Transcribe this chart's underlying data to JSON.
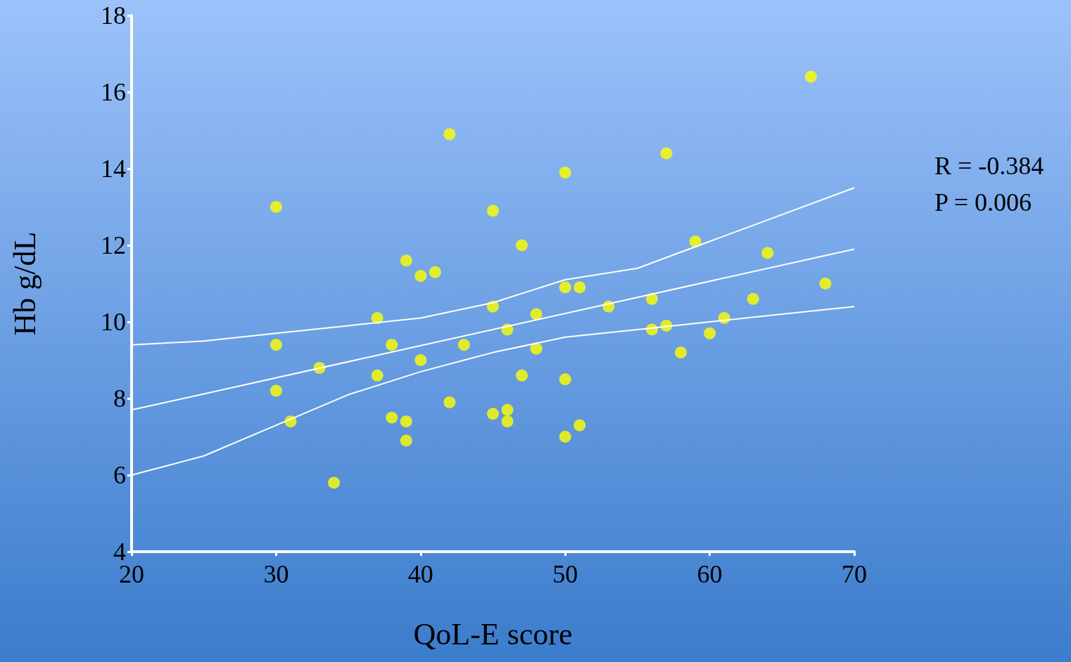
{
  "chart_data": {
    "type": "scatter",
    "xlabel": "QoL-E score",
    "ylabel": "Hb g/dL",
    "xlim": [
      20,
      70
    ],
    "xticks": [
      20,
      30,
      40,
      50,
      60,
      70
    ],
    "ylim": [
      4,
      18
    ],
    "yticks": [
      4,
      6,
      8,
      10,
      12,
      14,
      16,
      18
    ],
    "grid": false,
    "marker": "circle",
    "annotations": [
      "R = -0.384",
      "P = 0.006"
    ],
    "series": [
      {
        "color": "#ffff00",
        "x": [
          30,
          30,
          30,
          31,
          33,
          34,
          37,
          37,
          38,
          38,
          39,
          39,
          39,
          40,
          40,
          41,
          42,
          42,
          43,
          45,
          45,
          45,
          46,
          46,
          46,
          47,
          47,
          48,
          48,
          50,
          50,
          50,
          50,
          51,
          51,
          53,
          56,
          56,
          57,
          57,
          58,
          59,
          60,
          61,
          63,
          64,
          67,
          68
        ],
        "values": [
          13.0,
          9.4,
          8.2,
          7.4,
          8.8,
          5.8,
          10.1,
          8.6,
          9.4,
          7.5,
          11.6,
          7.4,
          6.9,
          11.2,
          9.0,
          11.3,
          14.9,
          7.9,
          9.4,
          12.9,
          10.4,
          7.6,
          9.8,
          7.7,
          7.4,
          12.0,
          8.6,
          10.2,
          9.3,
          13.9,
          10.9,
          8.5,
          7.0,
          10.9,
          7.3,
          10.4,
          10.6,
          9.8,
          14.4,
          9.9,
          9.2,
          12.1,
          9.7,
          10.1,
          10.6,
          11.8,
          16.4,
          11.0
        ]
      },
      {
        "type": "line",
        "color": "#ffffff",
        "marker": "none",
        "x": [
          20,
          70
        ],
        "values": [
          7.7,
          11.9
        ]
      },
      {
        "type": "line",
        "color": "#ffffff",
        "marker": "none",
        "x": [
          20,
          25,
          30,
          35,
          40,
          45,
          50,
          55,
          60,
          65,
          70
        ],
        "values": [
          9.4,
          9.5,
          9.7,
          9.9,
          10.1,
          10.5,
          11.1,
          11.4,
          12.1,
          12.8,
          13.5
        ]
      },
      {
        "type": "line",
        "color": "#ffffff",
        "marker": "none",
        "x": [
          20,
          25,
          30,
          35,
          40,
          45,
          50,
          55,
          60,
          65,
          70
        ],
        "values": [
          6.0,
          6.5,
          7.3,
          8.1,
          8.7,
          9.2,
          9.6,
          9.8,
          10.0,
          10.2,
          10.4
        ]
      }
    ]
  }
}
